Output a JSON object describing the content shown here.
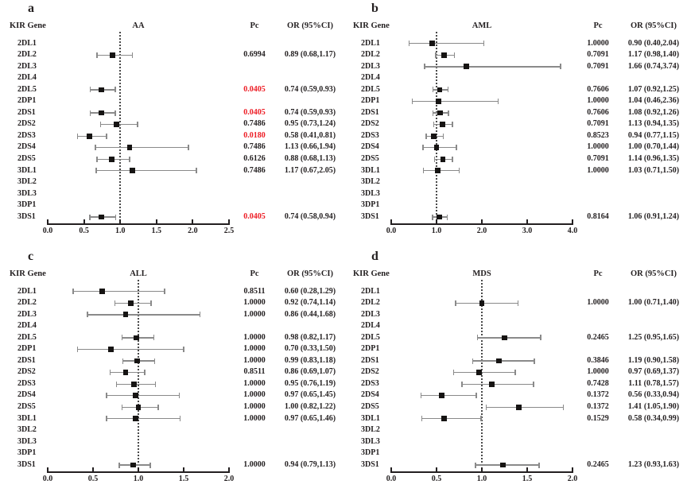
{
  "figure": {
    "gene_header": "KIR Gene",
    "pc_header": "Pc",
    "or_header": "OR (95%CI)",
    "colors": {
      "text": "#231f20",
      "significant_pc": "#ed1c24",
      "error_bar": "#8a8a8a",
      "marker": "#161413",
      "background": "#ffffff"
    }
  },
  "chart_data": [
    {
      "type": "forest",
      "panel_label": "a",
      "title": "AA",
      "x_axis": {
        "min": 0.0,
        "max": 2.5,
        "ticks": [
          "0.0",
          "0.5",
          "1.0",
          "1.5",
          "2.0",
          "2.5"
        ],
        "reference_line": 1.0
      },
      "rows": [
        {
          "gene": "2DL1"
        },
        {
          "gene": "2DL2",
          "pc": "0.6994",
          "sig": false,
          "or": 0.89,
          "lo": 0.68,
          "hi": 1.17,
          "or_text": "0.89 (0.68,1.17)"
        },
        {
          "gene": "2DL3"
        },
        {
          "gene": "2DL4"
        },
        {
          "gene": "2DL5",
          "pc": "0.0405",
          "sig": true,
          "or": 0.74,
          "lo": 0.59,
          "hi": 0.93,
          "or_text": "0.74 (0.59,0.93)"
        },
        {
          "gene": "2DP1"
        },
        {
          "gene": "2DS1",
          "pc": "0.0405",
          "sig": true,
          "or": 0.74,
          "lo": 0.59,
          "hi": 0.93,
          "or_text": "0.74 (0.59,0.93)"
        },
        {
          "gene": "2DS2",
          "pc": "0.7486",
          "sig": false,
          "or": 0.95,
          "lo": 0.73,
          "hi": 1.24,
          "or_text": "0.95 (0.73,1.24)"
        },
        {
          "gene": "2DS3",
          "pc": "0.0180",
          "sig": true,
          "or": 0.58,
          "lo": 0.41,
          "hi": 0.81,
          "or_text": "0.58 (0.41,0.81)"
        },
        {
          "gene": "2DS4",
          "pc": "0.7486",
          "sig": false,
          "or": 1.13,
          "lo": 0.66,
          "hi": 1.94,
          "or_text": "1.13 (0.66,1.94)"
        },
        {
          "gene": "2DS5",
          "pc": "0.6126",
          "sig": false,
          "or": 0.88,
          "lo": 0.68,
          "hi": 1.13,
          "or_text": "0.88 (0.68,1.13)"
        },
        {
          "gene": "3DL1",
          "pc": "0.7486",
          "sig": false,
          "or": 1.17,
          "lo": 0.67,
          "hi": 2.05,
          "or_text": "1.17 (0.67,2.05)"
        },
        {
          "gene": "3DL2"
        },
        {
          "gene": "3DL3"
        },
        {
          "gene": "3DP1"
        },
        {
          "gene": "3DS1",
          "pc": "0.0405",
          "sig": true,
          "or": 0.74,
          "lo": 0.58,
          "hi": 0.94,
          "or_text": "0.74 (0.58,0.94)"
        }
      ]
    },
    {
      "type": "forest",
      "panel_label": "b",
      "title": "AML",
      "x_axis": {
        "min": 0.0,
        "max": 4.0,
        "ticks": [
          "0.0",
          "1.0",
          "2.0",
          "3.0",
          "4.0"
        ],
        "reference_line": 1.0
      },
      "rows": [
        {
          "gene": "2DL1",
          "pc": "1.0000",
          "sig": false,
          "or": 0.9,
          "lo": 0.4,
          "hi": 2.04,
          "or_text": "0.90 (0.40,2.04)"
        },
        {
          "gene": "2DL2",
          "pc": "0.7091",
          "sig": false,
          "or": 1.17,
          "lo": 0.98,
          "hi": 1.4,
          "or_text": "1.17 (0.98,1.40)"
        },
        {
          "gene": "2DL3",
          "pc": "0.7091",
          "sig": false,
          "or": 1.66,
          "lo": 0.74,
          "hi": 3.74,
          "or_text": "1.66 (0.74,3.74)"
        },
        {
          "gene": "2DL4"
        },
        {
          "gene": "2DL5",
          "pc": "0.7606",
          "sig": false,
          "or": 1.07,
          "lo": 0.92,
          "hi": 1.25,
          "or_text": "1.07 (0.92,1.25)"
        },
        {
          "gene": "2DP1",
          "pc": "1.0000",
          "sig": false,
          "or": 1.04,
          "lo": 0.46,
          "hi": 2.36,
          "or_text": "1.04 (0.46,2.36)"
        },
        {
          "gene": "2DS1",
          "pc": "0.7606",
          "sig": false,
          "or": 1.08,
          "lo": 0.92,
          "hi": 1.26,
          "or_text": "1.08 (0.92,1.26)"
        },
        {
          "gene": "2DS2",
          "pc": "0.7091",
          "sig": false,
          "or": 1.13,
          "lo": 0.94,
          "hi": 1.35,
          "or_text": "1.13 (0.94,1.35)"
        },
        {
          "gene": "2DS3",
          "pc": "0.8523",
          "sig": false,
          "or": 0.94,
          "lo": 0.77,
          "hi": 1.15,
          "or_text": "0.94 (0.77,1.15)"
        },
        {
          "gene": "2DS4",
          "pc": "1.0000",
          "sig": false,
          "or": 1.0,
          "lo": 0.7,
          "hi": 1.44,
          "or_text": "1.00 (0.70,1.44)"
        },
        {
          "gene": "2DS5",
          "pc": "0.7091",
          "sig": false,
          "or": 1.14,
          "lo": 0.96,
          "hi": 1.35,
          "or_text": "1.14 (0.96,1.35)"
        },
        {
          "gene": "3DL1",
          "pc": "1.0000",
          "sig": false,
          "or": 1.03,
          "lo": 0.71,
          "hi": 1.5,
          "or_text": "1.03 (0.71,1.50)"
        },
        {
          "gene": "3DL2"
        },
        {
          "gene": "3DL3"
        },
        {
          "gene": "3DP1"
        },
        {
          "gene": "3DS1",
          "pc": "0.8164",
          "sig": false,
          "or": 1.06,
          "lo": 0.91,
          "hi": 1.24,
          "or_text": "1.06 (0.91,1.24)"
        }
      ]
    },
    {
      "type": "forest",
      "panel_label": "c",
      "title": "ALL",
      "x_axis": {
        "min": 0.0,
        "max": 2.0,
        "ticks": [
          "0.0",
          "0.5",
          "1.0",
          "1.5",
          "2.0"
        ],
        "reference_line": 1.0
      },
      "rows": [
        {
          "gene": "2DL1",
          "pc": "0.8511",
          "sig": false,
          "or": 0.6,
          "lo": 0.28,
          "hi": 1.29,
          "or_text": "0.60 (0.28,1.29)"
        },
        {
          "gene": "2DL2",
          "pc": "1.0000",
          "sig": false,
          "or": 0.92,
          "lo": 0.74,
          "hi": 1.14,
          "or_text": "0.92 (0.74,1.14)"
        },
        {
          "gene": "2DL3",
          "pc": "1.0000",
          "sig": false,
          "or": 0.86,
          "lo": 0.44,
          "hi": 1.68,
          "or_text": "0.86 (0.44,1.68)"
        },
        {
          "gene": "2DL4"
        },
        {
          "gene": "2DL5",
          "pc": "1.0000",
          "sig": false,
          "or": 0.98,
          "lo": 0.82,
          "hi": 1.17,
          "or_text": "0.98 (0.82,1.17)"
        },
        {
          "gene": "2DP1",
          "pc": "1.0000",
          "sig": false,
          "or": 0.7,
          "lo": 0.33,
          "hi": 1.5,
          "or_text": "0.70 (0.33,1.50)"
        },
        {
          "gene": "2DS1",
          "pc": "1.0000",
          "sig": false,
          "or": 0.99,
          "lo": 0.83,
          "hi": 1.18,
          "or_text": "0.99 (0.83,1.18)"
        },
        {
          "gene": "2DS2",
          "pc": "0.8511",
          "sig": false,
          "or": 0.86,
          "lo": 0.69,
          "hi": 1.07,
          "or_text": "0.86 (0.69,1.07)"
        },
        {
          "gene": "2DS3",
          "pc": "1.0000",
          "sig": false,
          "or": 0.95,
          "lo": 0.76,
          "hi": 1.19,
          "or_text": "0.95 (0.76,1.19)"
        },
        {
          "gene": "2DS4",
          "pc": "1.0000",
          "sig": false,
          "or": 0.97,
          "lo": 0.65,
          "hi": 1.45,
          "or_text": "0.97 (0.65,1.45)"
        },
        {
          "gene": "2DS5",
          "pc": "1.0000",
          "sig": false,
          "or": 1.0,
          "lo": 0.82,
          "hi": 1.22,
          "or_text": "1.00 (0.82,1.22)"
        },
        {
          "gene": "3DL1",
          "pc": "1.0000",
          "sig": false,
          "or": 0.97,
          "lo": 0.65,
          "hi": 1.46,
          "or_text": "0.97 (0.65,1.46)"
        },
        {
          "gene": "3DL2"
        },
        {
          "gene": "3DL3"
        },
        {
          "gene": "3DP1"
        },
        {
          "gene": "3DS1",
          "pc": "1.0000",
          "sig": false,
          "or": 0.94,
          "lo": 0.79,
          "hi": 1.13,
          "or_text": "0.94 (0.79,1.13)"
        }
      ]
    },
    {
      "type": "forest",
      "panel_label": "d",
      "title": "MDS",
      "x_axis": {
        "min": 0.0,
        "max": 2.0,
        "ticks": [
          "0.0",
          "0.5",
          "1.0",
          "1.5",
          "2.0"
        ],
        "reference_line": 1.0
      },
      "rows": [
        {
          "gene": "2DL1"
        },
        {
          "gene": "2DL2",
          "pc": "1.0000",
          "sig": false,
          "or": 1.0,
          "lo": 0.71,
          "hi": 1.4,
          "or_text": "1.00 (0.71,1.40)"
        },
        {
          "gene": "2DL3"
        },
        {
          "gene": "2DL4"
        },
        {
          "gene": "2DL5",
          "pc": "0.2465",
          "sig": false,
          "or": 1.25,
          "lo": 0.95,
          "hi": 1.65,
          "or_text": "1.25 (0.95,1.65)"
        },
        {
          "gene": "2DP1"
        },
        {
          "gene": "2DS1",
          "pc": "0.3846",
          "sig": false,
          "or": 1.19,
          "lo": 0.9,
          "hi": 1.58,
          "or_text": "1.19 (0.90,1.58)"
        },
        {
          "gene": "2DS2",
          "pc": "1.0000",
          "sig": false,
          "or": 0.97,
          "lo": 0.69,
          "hi": 1.37,
          "or_text": "0.97 (0.69,1.37)"
        },
        {
          "gene": "2DS3",
          "pc": "0.7428",
          "sig": false,
          "or": 1.11,
          "lo": 0.78,
          "hi": 1.57,
          "or_text": "1.11 (0.78,1.57)"
        },
        {
          "gene": "2DS4",
          "pc": "0.1372",
          "sig": false,
          "or": 0.56,
          "lo": 0.33,
          "hi": 0.94,
          "or_text": "0.56 (0.33,0.94)"
        },
        {
          "gene": "2DS5",
          "pc": "0.1372",
          "sig": false,
          "or": 1.41,
          "lo": 1.05,
          "hi": 1.9,
          "or_text": "1.41 (1.05,1.90)"
        },
        {
          "gene": "3DL1",
          "pc": "0.1529",
          "sig": false,
          "or": 0.58,
          "lo": 0.34,
          "hi": 0.99,
          "or_text": "0.58 (0.34,0.99)"
        },
        {
          "gene": "3DL2"
        },
        {
          "gene": "3DL3"
        },
        {
          "gene": "3DP1"
        },
        {
          "gene": "3DS1",
          "pc": "0.2465",
          "sig": false,
          "or": 1.23,
          "lo": 0.93,
          "hi": 1.63,
          "or_text": "1.23 (0.93,1.63)"
        }
      ]
    }
  ]
}
